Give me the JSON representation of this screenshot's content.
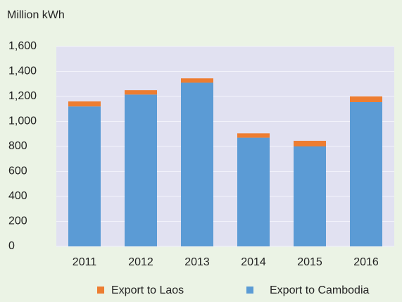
{
  "chart_data": {
    "type": "stacked_bar",
    "y_label": "Million kWh",
    "categories": [
      "2011",
      "2012",
      "2013",
      "2014",
      "2015",
      "2016"
    ],
    "series": [
      {
        "name": "Export to Laos",
        "color": "#ed7d31",
        "values": [
          40,
          35,
          35,
          35,
          45,
          45
        ]
      },
      {
        "name": "Export to Cambodia",
        "color": "#5b9bd5",
        "values": [
          1120,
          1215,
          1310,
          870,
          800,
          1155
        ]
      }
    ],
    "ylim": [
      0,
      1600
    ],
    "yticks": [
      0,
      200,
      400,
      600,
      800,
      {
        "value": 1000,
        "label": "1,000"
      },
      {
        "value": 1200,
        "label": "1,200"
      },
      {
        "value": 1400,
        "label": "1,400"
      },
      {
        "value": 1600,
        "label": "1,600"
      }
    ],
    "grid": true,
    "legend": "bottom"
  }
}
